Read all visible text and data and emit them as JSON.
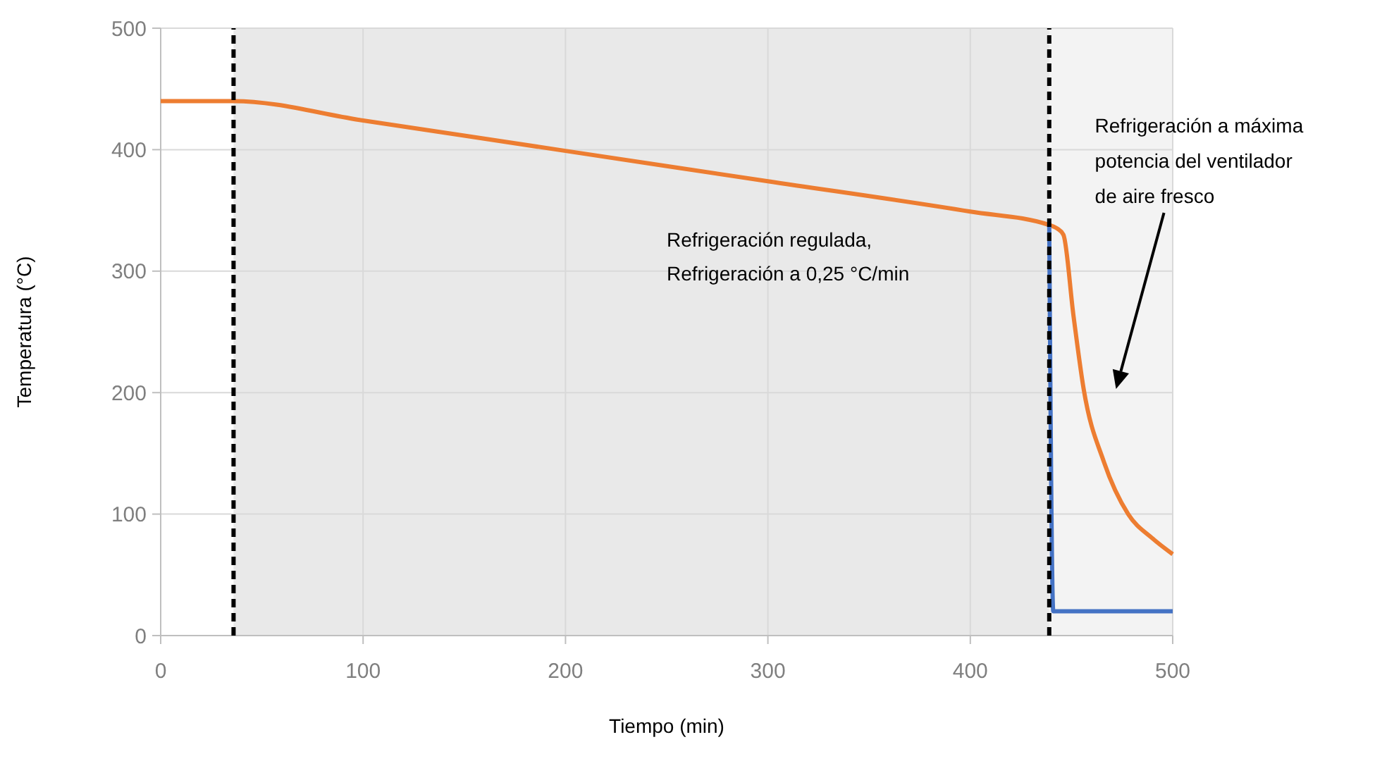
{
  "chart_data": {
    "type": "line",
    "xlabel": "Tiempo (min)",
    "ylabel": "Temperatura (°C)",
    "xlim": [
      0,
      500
    ],
    "ylim": [
      0,
      500
    ],
    "xticks": [
      0,
      100,
      200,
      300,
      400,
      500
    ],
    "yticks": [
      0,
      100,
      200,
      300,
      400,
      500
    ],
    "grid": true,
    "series": [
      {
        "color": "#ed7d31",
        "x": [
          0,
          36,
          100,
          200,
          300,
          400,
          439,
          443,
          446,
          451,
          456,
          466,
          478,
          490,
          500
        ],
        "values": [
          440,
          440,
          424,
          399,
          374,
          349,
          338,
          335,
          330,
          263,
          203,
          143,
          100,
          80,
          67
        ]
      },
      {
        "color": "#4472c4",
        "x": [
          439,
          441,
          500
        ],
        "values": [
          338,
          20,
          20
        ]
      }
    ],
    "ref_lines": [
      {
        "axis": "x",
        "value": 36,
        "color": "#000000",
        "line_style": "dashed"
      },
      {
        "axis": "x",
        "value": 439,
        "color": "#000000",
        "line_style": "dashed"
      }
    ],
    "bands": [
      {
        "axis": "x",
        "from": 36,
        "to": 439,
        "color": "#e9e9e9"
      },
      {
        "axis": "x",
        "from": 439,
        "to": 500,
        "color": "#f3f3f3"
      }
    ],
    "annotations": [
      "Refrigeración regulada,\nRefrigeración a 0,25 °C/min",
      "Refrigeración a máxima\npotencia del ventilador\nde aire fresco"
    ]
  }
}
